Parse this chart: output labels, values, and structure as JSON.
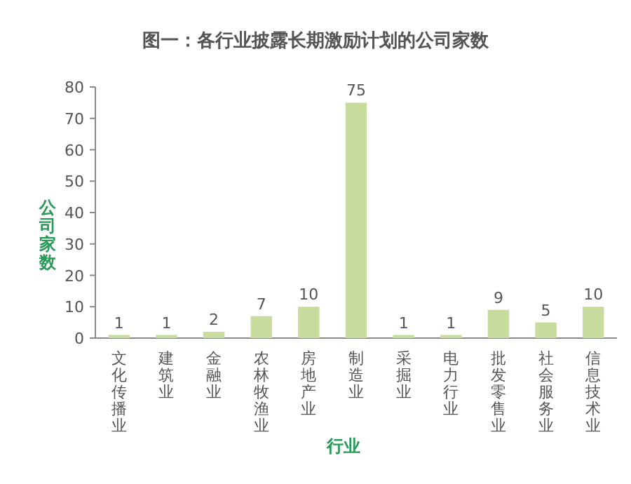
{
  "chart_data": {
    "type": "bar",
    "title": "图一：各行业披露长期激励计划的公司家数",
    "xlabel": "行业",
    "ylabel": "公司家数",
    "categories": [
      "文化传播业",
      "建筑业",
      "金融业",
      "农林牧渔业",
      "房地产业",
      "制造业",
      "采掘业",
      "电力行业",
      "批发零售业",
      "社会服务业",
      "信息技术业"
    ],
    "values": [
      1,
      1,
      2,
      7,
      10,
      75,
      1,
      1,
      9,
      5,
      10
    ],
    "color": "#c8dc9e",
    "data_labels": true,
    "ylim": [
      0,
      80
    ],
    "yticks": [
      0,
      10,
      20,
      30,
      40,
      50,
      60,
      70,
      80
    ],
    "grid": false
  }
}
